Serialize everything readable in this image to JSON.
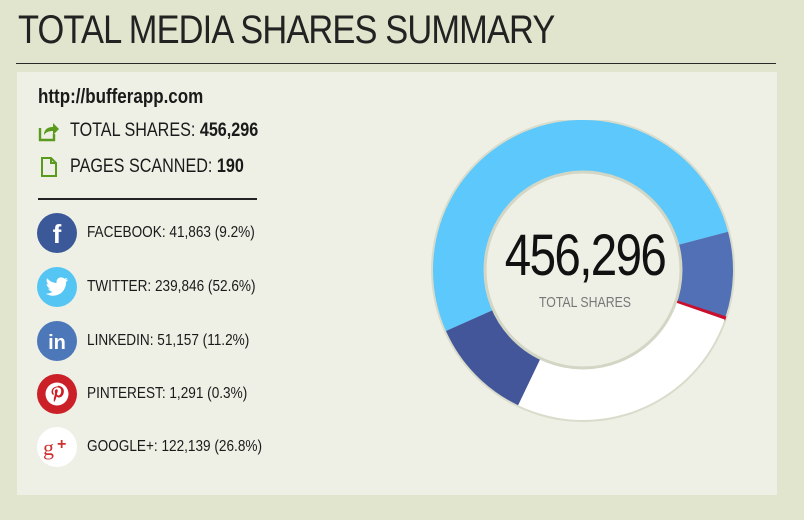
{
  "header": {
    "title": "TOTAL MEDIA SHARES SUMMARY"
  },
  "summary": {
    "url": "http://bufferapp.com",
    "total_label": "TOTAL SHARES:",
    "total_value": "456,296",
    "pages_label": "PAGES SCANNED:",
    "pages_value": "190"
  },
  "networks": [
    {
      "label": "FACEBOOK: 41,863 (9.2%)",
      "icon": "facebook-icon",
      "color": "#3b5998"
    },
    {
      "label": "TWITTER: 239,846 (52.6%)",
      "icon": "twitter-icon",
      "color": "#55c5f4"
    },
    {
      "label": "LINKEDIN: 51,157 (11.2%)",
      "icon": "linkedin-icon",
      "color": "#4c77b8"
    },
    {
      "label": "PINTEREST: 1,291 (0.3%)",
      "icon": "pinterest-icon",
      "color": "#cb2027"
    },
    {
      "label": "GOOGLE+: 122,139 (26.8%)",
      "icon": "google-plus-icon",
      "color": "#ffffff"
    }
  ],
  "chart_data": {
    "type": "pie",
    "donut": true,
    "center_value": "456,296",
    "center_label": "TOTAL SHARES",
    "slices": [
      {
        "name": "TWITTER",
        "value": 239846,
        "color": "#5cc8fb"
      },
      {
        "name": "FACEBOOK",
        "value": 41863,
        "color": "#5170b5"
      },
      {
        "name": "PINTEREST",
        "value": 1291,
        "color": "#c8102e"
      },
      {
        "name": "GOOGLE+",
        "value": 122139,
        "color": "#ffffff"
      },
      {
        "name": "LINKEDIN",
        "value": 51157,
        "color": "#43569a"
      }
    ]
  }
}
